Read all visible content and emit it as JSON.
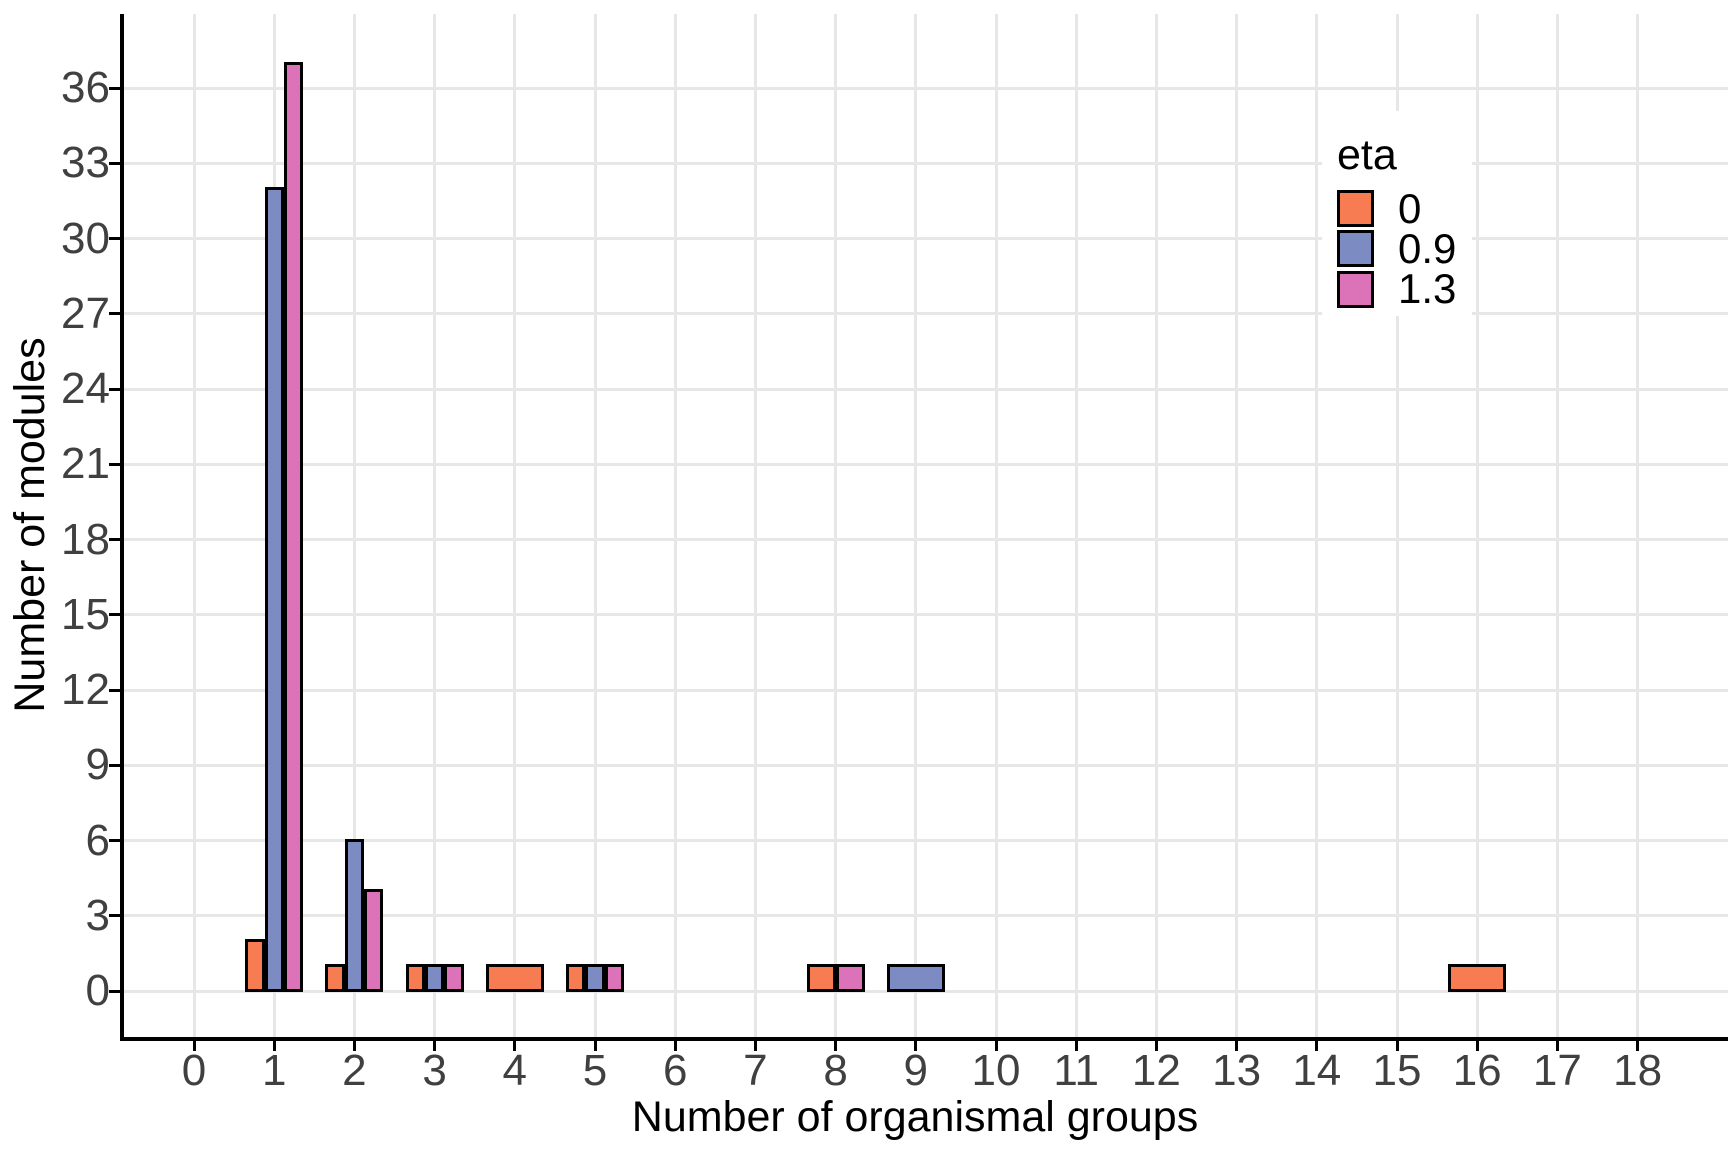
{
  "chart_data": {
    "type": "bar",
    "title": "",
    "xlabel": "Number of organismal groups",
    "ylabel": "Number of modules",
    "x_ticks": [
      0,
      1,
      2,
      3,
      4,
      5,
      6,
      7,
      8,
      9,
      10,
      11,
      12,
      13,
      14,
      15,
      16,
      17,
      18
    ],
    "y_ticks": [
      0,
      3,
      6,
      9,
      12,
      15,
      18,
      21,
      24,
      27,
      30,
      33,
      36
    ],
    "xlim": [
      -0.9,
      19.1
    ],
    "ylim": [
      -1.85,
      38.85
    ],
    "grid": "major gridlines only, light gray on white panel",
    "bar_style": "dodged histogram, black outline; missing groups let present bars widen",
    "legend": {
      "title": "eta",
      "position": "inside top-right"
    },
    "series": [
      {
        "name": "0",
        "color": "#F87C51",
        "bars": [
          {
            "x": 1,
            "count": 2
          },
          {
            "x": 2,
            "count": 1
          },
          {
            "x": 3,
            "count": 1
          },
          {
            "x": 4,
            "count": 1
          },
          {
            "x": 5,
            "count": 1
          },
          {
            "x": 8,
            "count": 1
          },
          {
            "x": 16,
            "count": 1
          }
        ]
      },
      {
        "name": "0.9",
        "color": "#7C8CC3",
        "bars": [
          {
            "x": 1,
            "count": 32
          },
          {
            "x": 2,
            "count": 6
          },
          {
            "x": 3,
            "count": 1
          },
          {
            "x": 5,
            "count": 1
          },
          {
            "x": 9,
            "count": 1
          }
        ]
      },
      {
        "name": "1.3",
        "color": "#DC73B8",
        "bars": [
          {
            "x": 1,
            "count": 37
          },
          {
            "x": 2,
            "count": 4
          },
          {
            "x": 3,
            "count": 1
          },
          {
            "x": 5,
            "count": 1
          },
          {
            "x": 8,
            "count": 1
          }
        ]
      }
    ],
    "colors": {
      "gridline": "#E7E7E7",
      "axis_line": "#000000",
      "tick_text": "#404040",
      "title_text": "#000000",
      "panel_background": "#FFFFFF"
    }
  }
}
